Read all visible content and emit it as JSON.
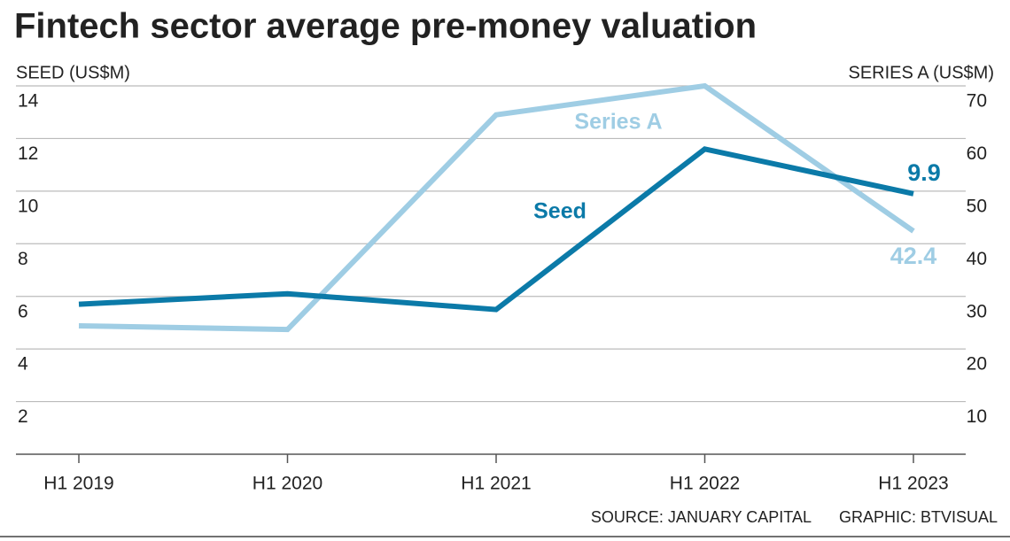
{
  "chart_data": {
    "type": "line",
    "title": "Fintech sector average pre-money valuation",
    "y_label": "SEED (US$M)",
    "y2_label": "SERIES A (US$M)",
    "source": "SOURCE: JANUARY CAPITAL",
    "credit": "GRAPHIC: BTVISUAL",
    "categories": [
      "H1 2019",
      "H1 2020",
      "H1 2021",
      "H1 2022",
      "H1 2023"
    ],
    "series": [
      {
        "name": "Seed",
        "color": "#0b7aa8",
        "values": [
          5.7,
          6.1,
          5.5,
          11.6,
          9.9
        ]
      },
      {
        "name": "Series A",
        "color": "#9fcde4",
        "axis": "y2",
        "values": [
          24.4,
          23.7,
          64.5,
          70,
          42.4
        ]
      }
    ],
    "ylim": [
      0,
      14
    ],
    "yticks": [
      2,
      4,
      6,
      8,
      10,
      12,
      14
    ],
    "y2lim": [
      0,
      70
    ],
    "y2ticks": [
      10,
      20,
      30,
      40,
      50,
      60,
      70
    ],
    "grid": true,
    "label_last_value": true,
    "title_color": "#0b76a8"
  }
}
